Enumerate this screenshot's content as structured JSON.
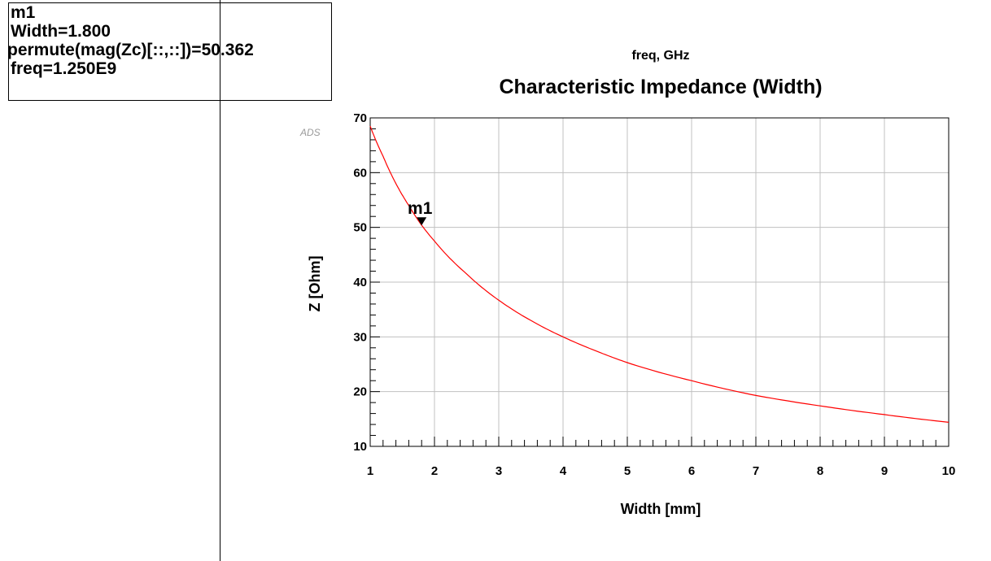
{
  "marker_readout": {
    "name": "m1",
    "lines": [
      "Width=1.800",
      "permute(mag(Zc)[::,::])=50.362",
      "freq=1.250E9"
    ]
  },
  "sweep_label": "freq, GHz",
  "watermark": "ADS",
  "colors": {
    "curve": "#ff0000",
    "grid": "#c0c0c0",
    "axes": "#000000"
  },
  "chart_data": {
    "type": "line",
    "title": "Characteristic Impedance (Width)",
    "xlabel": "Width [mm]",
    "ylabel": "Z [Ohm]",
    "xlim": [
      1,
      10
    ],
    "ylim": [
      10,
      70
    ],
    "xticks": [
      1,
      2,
      3,
      4,
      5,
      6,
      7,
      8,
      9,
      10
    ],
    "yticks": [
      10,
      20,
      30,
      40,
      50,
      60,
      70
    ],
    "grid": true,
    "series": [
      {
        "x": [
          1,
          1.2,
          1.4,
          1.6,
          1.8,
          2,
          2.5,
          3,
          3.5,
          4,
          4.5,
          5,
          6,
          7,
          8,
          9,
          10
        ],
        "y": [
          68.5,
          63.0,
          58.0,
          54.0,
          50.4,
          47.5,
          41.5,
          36.7,
          33.0,
          30.0,
          27.5,
          25.3,
          22.0,
          19.3,
          17.4,
          15.8,
          14.4
        ]
      }
    ],
    "markers": [
      {
        "label": "m1",
        "x": 1.8,
        "y": 50.362
      }
    ]
  }
}
